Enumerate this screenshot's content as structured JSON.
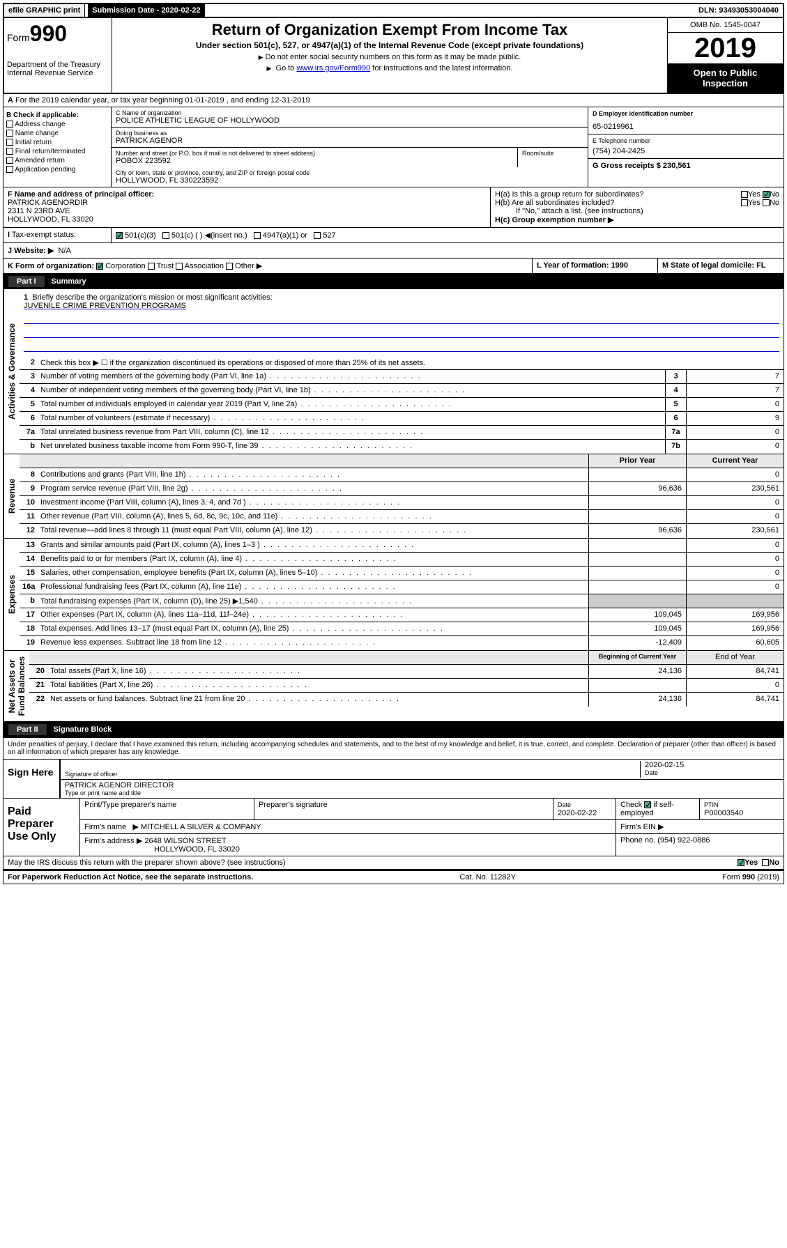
{
  "top": {
    "efile": "efile GRAPHIC print",
    "submission_label": "Submission Date - 2020-02-22",
    "dln": "DLN: 93493053004040"
  },
  "header": {
    "form_prefix": "Form",
    "form_num": "990",
    "dept": "Department of the Treasury\nInternal Revenue Service",
    "title": "Return of Organization Exempt From Income Tax",
    "subtitle": "Under section 501(c), 527, or 4947(a)(1) of the Internal Revenue Code (except private foundations)",
    "instr1": "Do not enter social security numbers on this form as it may be made public.",
    "instr2_pre": "Go to ",
    "instr2_link": "www.irs.gov/Form990",
    "instr2_post": " for instructions and the latest information.",
    "omb": "OMB No. 1545-0047",
    "year": "2019",
    "open": "Open to Public Inspection"
  },
  "sectionA": "For the 2019 calendar year, or tax year beginning 01-01-2019    , and ending 12-31-2019",
  "colB": {
    "header": "B Check if applicable:",
    "items": [
      "Address change",
      "Name change",
      "Initial return",
      "Final return/terminated",
      "Amended return",
      "Application pending"
    ]
  },
  "colC": {
    "name_label": "C Name of organization",
    "name": "POLICE ATHLETIC LEAGUE OF HOLLYWOOD",
    "dba_label": "Doing business as",
    "dba": "PATRICK AGENOR",
    "addr_label": "Number and street (or P.O. box if mail is not delivered to street address)",
    "room_label": "Room/suite",
    "addr": "POBOX 223592",
    "city_label": "City or town, state or province, country, and ZIP or foreign postal code",
    "city": "HOLLYWOOD, FL  330223592"
  },
  "colD": {
    "ein_label": "D Employer identification number",
    "ein": "65-0219961",
    "phone_label": "E Telephone number",
    "phone": "(754) 204-2425",
    "gross_label": "G Gross receipts $ 230,561"
  },
  "rowF": {
    "label": "F  Name and address of principal officer:",
    "name": "PATRICK AGENORDIR",
    "addr1": "2311 N 23RD AVE",
    "addr2": "HOLLYWOOD, FL  33020"
  },
  "rowH": {
    "ha": "H(a)  Is this a group return for subordinates?",
    "hb": "H(b)  Are all subordinates included?",
    "hb_note": "If \"No,\" attach a list. (see instructions)",
    "hc": "H(c)  Group exemption number ▶",
    "yes": "Yes",
    "no": "No"
  },
  "rowI": {
    "label": "Tax-exempt status:",
    "opts": [
      "501(c)(3)",
      "501(c) (  ) ◀(insert no.)",
      "4947(a)(1) or",
      "527"
    ]
  },
  "rowJ": {
    "label": "Website: ▶",
    "val": "N/A"
  },
  "rowK": {
    "label": "K Form of organization:",
    "opts": [
      "Corporation",
      "Trust",
      "Association",
      "Other ▶"
    ]
  },
  "rowL": {
    "label": "L Year of formation: 1990"
  },
  "rowM": {
    "label": "M State of legal domicile: FL"
  },
  "part1": {
    "label": "Part I",
    "title": "Summary"
  },
  "summary": {
    "governance_label": "Activities & Governance",
    "revenue_label": "Revenue",
    "expenses_label": "Expenses",
    "netassets_label": "Net Assets or\nFund Balances",
    "line1": "Briefly describe the organization's mission or most significant activities:",
    "mission": "JUVENILE CRIME PREVENTION PROGRAMS",
    "line2": "Check this box ▶ ☐  if the organization discontinued its operations or disposed of more than 25% of its net assets.",
    "rows": [
      {
        "n": "3",
        "t": "Number of voting members of the governing body (Part VI, line 1a)",
        "box": "3",
        "v": "7"
      },
      {
        "n": "4",
        "t": "Number of independent voting members of the governing body (Part VI, line 1b)",
        "box": "4",
        "v": "7"
      },
      {
        "n": "5",
        "t": "Total number of individuals employed in calendar year 2019 (Part V, line 2a)",
        "box": "5",
        "v": "0"
      },
      {
        "n": "6",
        "t": "Total number of volunteers (estimate if necessary)",
        "box": "6",
        "v": "9"
      },
      {
        "n": "7a",
        "t": "Total unrelated business revenue from Part VIII, column (C), line 12",
        "box": "7a",
        "v": "0"
      },
      {
        "n": "b",
        "t": "Net unrelated business taxable income from Form 990-T, line 39",
        "box": "7b",
        "v": "0"
      }
    ],
    "prior_label": "Prior Year",
    "current_label": "Current Year",
    "rev_rows": [
      {
        "n": "8",
        "t": "Contributions and grants (Part VIII, line 1h)",
        "p": "",
        "c": "0"
      },
      {
        "n": "9",
        "t": "Program service revenue (Part VIII, line 2g)",
        "p": "96,636",
        "c": "230,561"
      },
      {
        "n": "10",
        "t": "Investment income (Part VIII, column (A), lines 3, 4, and 7d )",
        "p": "",
        "c": "0"
      },
      {
        "n": "11",
        "t": "Other revenue (Part VIII, column (A), lines 5, 6d, 8c, 9c, 10c, and 11e)",
        "p": "",
        "c": "0"
      },
      {
        "n": "12",
        "t": "Total revenue—add lines 8 through 11 (must equal Part VIII, column (A), line 12)",
        "p": "96,636",
        "c": "230,561"
      }
    ],
    "exp_rows": [
      {
        "n": "13",
        "t": "Grants and similar amounts paid (Part IX, column (A), lines 1–3 )",
        "p": "",
        "c": "0"
      },
      {
        "n": "14",
        "t": "Benefits paid to or for members (Part IX, column (A), line 4)",
        "p": "",
        "c": "0"
      },
      {
        "n": "15",
        "t": "Salaries, other compensation, employee benefits (Part IX, column (A), lines 5–10)",
        "p": "",
        "c": "0"
      },
      {
        "n": "16a",
        "t": "Professional fundraising fees (Part IX, column (A), line 11e)",
        "p": "",
        "c": "0"
      },
      {
        "n": "b",
        "t": "Total fundraising expenses (Part IX, column (D), line 25) ▶1,540",
        "p": "",
        "c": ""
      },
      {
        "n": "17",
        "t": "Other expenses (Part IX, column (A), lines 11a–11d, 11f–24e)",
        "p": "109,045",
        "c": "169,956"
      },
      {
        "n": "18",
        "t": "Total expenses. Add lines 13–17 (must equal Part IX, column (A), line 25)",
        "p": "109,045",
        "c": "169,956"
      },
      {
        "n": "19",
        "t": "Revenue less expenses. Subtract line 18 from line 12",
        "p": "-12,409",
        "c": "60,605"
      }
    ],
    "begin_label": "Beginning of Current Year",
    "end_label": "End of Year",
    "net_rows": [
      {
        "n": "20",
        "t": "Total assets (Part X, line 16)",
        "p": "24,136",
        "c": "84,741"
      },
      {
        "n": "21",
        "t": "Total liabilities (Part X, line 26)",
        "p": "",
        "c": "0"
      },
      {
        "n": "22",
        "t": "Net assets or fund balances. Subtract line 21 from line 20",
        "p": "24,136",
        "c": "84,741"
      }
    ]
  },
  "part2": {
    "label": "Part II",
    "title": "Signature Block"
  },
  "sig": {
    "penalty": "Under penalties of perjury, I declare that I have examined this return, including accompanying schedules and statements, and to the best of my knowledge and belief, it is true, correct, and complete. Declaration of preparer (other than officer) is based on all information of which preparer has any knowledge.",
    "sign_here": "Sign Here",
    "sig_officer": "Signature of officer",
    "date1": "2020-02-15",
    "date_label": "Date",
    "name_title": "PATRICK AGENOR  DIRECTOR",
    "type_label": "Type or print name and title"
  },
  "paid": {
    "label": "Paid Preparer Use Only",
    "h1": "Print/Type preparer's name",
    "h2": "Preparer's signature",
    "h3": "Date",
    "date": "2020-02-22",
    "h4_pre": "Check",
    "h4_post": "if self-employed",
    "h5": "PTIN",
    "ptin": "P00003540",
    "firm_name_label": "Firm's name",
    "firm_name": "MITCHELL A SILVER & COMPANY",
    "firm_ein_label": "Firm's EIN ▶",
    "firm_addr_label": "Firm's address ▶",
    "firm_addr": "2648 WILSON STREET",
    "firm_city": "HOLLYWOOD, FL  33020",
    "phone_label": "Phone no. (954) 922-0886"
  },
  "footer": {
    "discuss": "May the IRS discuss this return with the preparer shown above? (see instructions)",
    "yes": "Yes",
    "no": "No",
    "paperwork": "For Paperwork Reduction Act Notice, see the separate instructions.",
    "cat": "Cat. No. 11282Y",
    "form": "Form 990 (2019)"
  }
}
